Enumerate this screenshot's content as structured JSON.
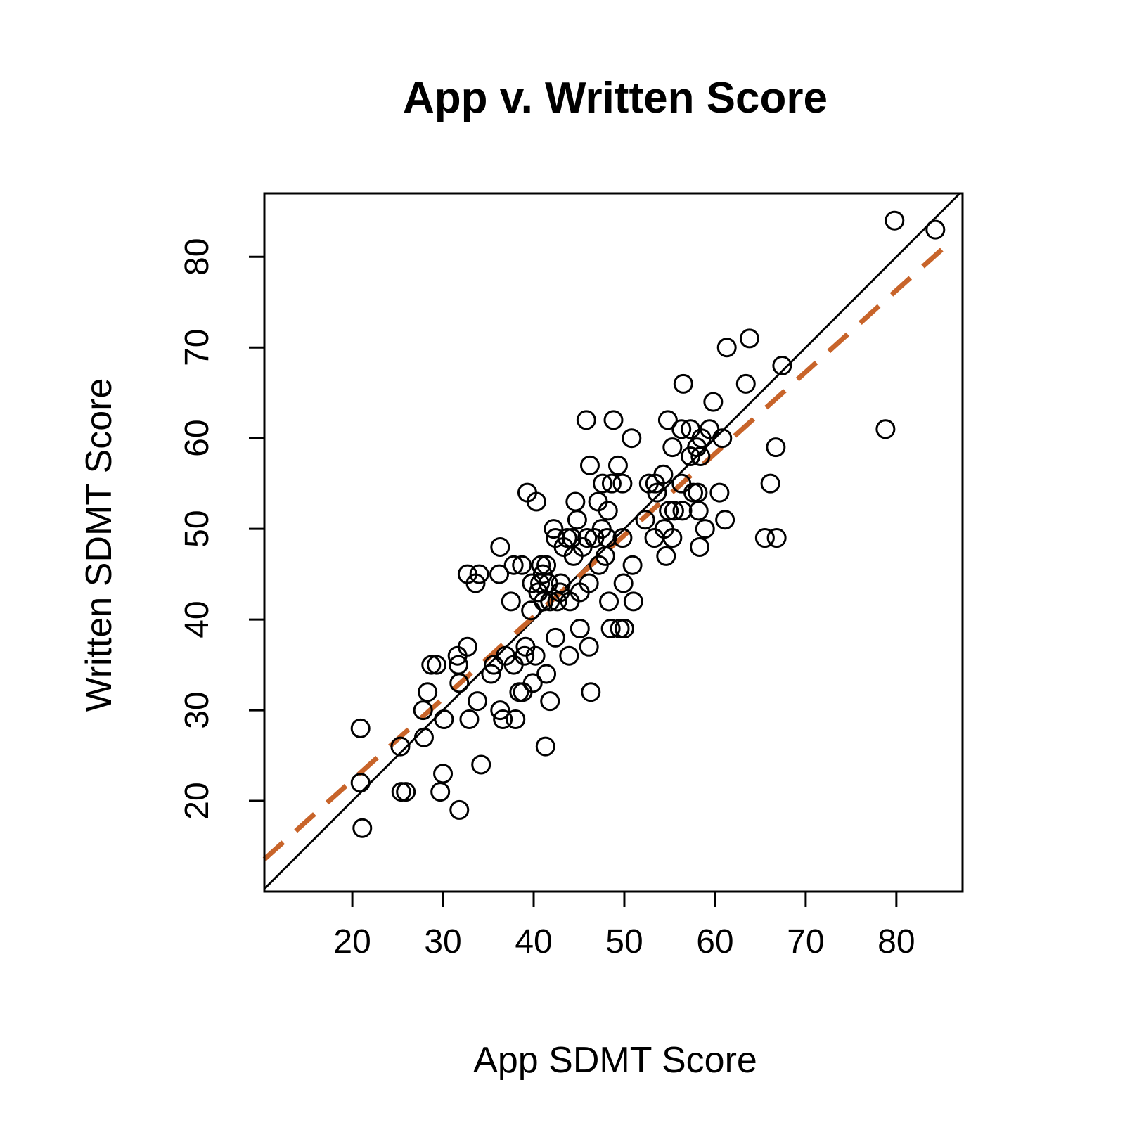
{
  "chart_data": {
    "type": "scatter",
    "title": "App v. Written Score",
    "xlabel": "App SDMT Score",
    "ylabel": "Written SDMT Score",
    "xlim": [
      10.3,
      87.3
    ],
    "ylim": [
      10,
      87
    ],
    "xticks": [
      "20",
      "30",
      "40",
      "50",
      "60",
      "70",
      "80"
    ],
    "yticks": [
      "20",
      "30",
      "40",
      "50",
      "60",
      "70",
      "80"
    ],
    "xtick_values": [
      20,
      30,
      40,
      50,
      60,
      70,
      80
    ],
    "ytick_values": [
      20,
      30,
      40,
      50,
      60,
      70,
      80
    ],
    "grid": false,
    "identity_line_color": "#000000",
    "fit_line": {
      "intercept": 4.3,
      "slope": 0.9,
      "color": "#c8642a"
    },
    "points": [
      [
        20.9,
        28
      ],
      [
        20.9,
        22
      ],
      [
        21.1,
        17
      ],
      [
        25.3,
        26
      ],
      [
        25.4,
        21
      ],
      [
        25.9,
        21
      ],
      [
        27.8,
        30
      ],
      [
        27.9,
        27
      ],
      [
        28.3,
        32
      ],
      [
        28.7,
        35
      ],
      [
        29.3,
        35
      ],
      [
        29.7,
        21
      ],
      [
        30.0,
        23
      ],
      [
        30.1,
        29
      ],
      [
        31.6,
        36
      ],
      [
        31.7,
        35
      ],
      [
        31.8,
        33
      ],
      [
        31.8,
        19
      ],
      [
        32.7,
        37
      ],
      [
        32.7,
        45
      ],
      [
        32.9,
        29
      ],
      [
        33.6,
        44
      ],
      [
        33.8,
        31
      ],
      [
        34.0,
        45
      ],
      [
        34.2,
        24
      ],
      [
        35.3,
        34
      ],
      [
        35.6,
        35
      ],
      [
        36.2,
        45
      ],
      [
        36.3,
        48
      ],
      [
        36.3,
        30
      ],
      [
        36.6,
        29
      ],
      [
        36.9,
        36
      ],
      [
        37.5,
        42
      ],
      [
        37.8,
        46
      ],
      [
        37.8,
        35
      ],
      [
        38.0,
        29
      ],
      [
        38.4,
        32
      ],
      [
        38.7,
        46
      ],
      [
        38.8,
        32
      ],
      [
        39.0,
        36
      ],
      [
        39.1,
        37
      ],
      [
        39.3,
        54
      ],
      [
        39.7,
        41
      ],
      [
        39.8,
        44
      ],
      [
        39.9,
        33
      ],
      [
        40.2,
        36
      ],
      [
        40.3,
        53
      ],
      [
        40.5,
        43
      ],
      [
        40.7,
        44
      ],
      [
        40.8,
        46
      ],
      [
        41.0,
        45
      ],
      [
        41.1,
        42
      ],
      [
        41.3,
        26
      ],
      [
        41.4,
        34
      ],
      [
        41.4,
        46
      ],
      [
        41.6,
        44
      ],
      [
        41.8,
        31
      ],
      [
        41.8,
        42
      ],
      [
        42.2,
        50
      ],
      [
        42.4,
        38
      ],
      [
        42.4,
        49
      ],
      [
        42.6,
        42
      ],
      [
        42.9,
        43
      ],
      [
        43.0,
        44
      ],
      [
        43.3,
        48
      ],
      [
        43.7,
        49
      ],
      [
        43.9,
        36
      ],
      [
        44.0,
        42
      ],
      [
        44.2,
        49
      ],
      [
        44.4,
        47
      ],
      [
        44.6,
        53
      ],
      [
        44.8,
        51
      ],
      [
        45.1,
        39
      ],
      [
        45.1,
        43
      ],
      [
        45.4,
        48
      ],
      [
        45.8,
        62
      ],
      [
        45.9,
        49
      ],
      [
        46.1,
        37
      ],
      [
        46.1,
        44
      ],
      [
        46.2,
        57
      ],
      [
        46.3,
        32
      ],
      [
        46.7,
        49
      ],
      [
        47.1,
        53
      ],
      [
        47.2,
        46
      ],
      [
        47.5,
        50
      ],
      [
        47.6,
        55
      ],
      [
        47.9,
        47
      ],
      [
        48.1,
        49
      ],
      [
        48.2,
        52
      ],
      [
        48.3,
        42
      ],
      [
        48.5,
        39
      ],
      [
        48.6,
        55
      ],
      [
        48.8,
        62
      ],
      [
        49.3,
        57
      ],
      [
        49.5,
        39
      ],
      [
        49.8,
        55
      ],
      [
        49.9,
        44
      ],
      [
        50.0,
        39
      ],
      [
        49.8,
        49
      ],
      [
        50.8,
        60
      ],
      [
        50.9,
        46
      ],
      [
        51.0,
        42
      ],
      [
        52.3,
        51
      ],
      [
        52.7,
        55
      ],
      [
        53.3,
        49
      ],
      [
        53.4,
        55
      ],
      [
        53.6,
        54
      ],
      [
        54.3,
        56
      ],
      [
        54.4,
        50
      ],
      [
        54.6,
        47
      ],
      [
        54.8,
        62
      ],
      [
        54.9,
        52
      ],
      [
        55.3,
        59
      ],
      [
        55.3,
        49
      ],
      [
        55.5,
        52
      ],
      [
        56.3,
        61
      ],
      [
        56.3,
        55
      ],
      [
        56.4,
        52
      ],
      [
        56.5,
        66
      ],
      [
        57.3,
        61
      ],
      [
        57.3,
        58
      ],
      [
        57.6,
        54
      ],
      [
        58.0,
        59
      ],
      [
        58.1,
        54
      ],
      [
        58.2,
        52
      ],
      [
        58.3,
        48
      ],
      [
        58.4,
        58
      ],
      [
        58.5,
        60
      ],
      [
        58.9,
        50
      ],
      [
        59.4,
        61
      ],
      [
        59.8,
        64
      ],
      [
        60.5,
        54
      ],
      [
        60.8,
        60
      ],
      [
        61.1,
        51
      ],
      [
        61.3,
        70
      ],
      [
        63.4,
        66
      ],
      [
        63.8,
        71
      ],
      [
        65.5,
        49
      ],
      [
        66.1,
        55
      ],
      [
        66.7,
        59
      ],
      [
        66.8,
        49
      ],
      [
        67.4,
        68
      ],
      [
        78.8,
        61
      ],
      [
        79.8,
        84
      ],
      [
        84.3,
        83
      ]
    ]
  }
}
